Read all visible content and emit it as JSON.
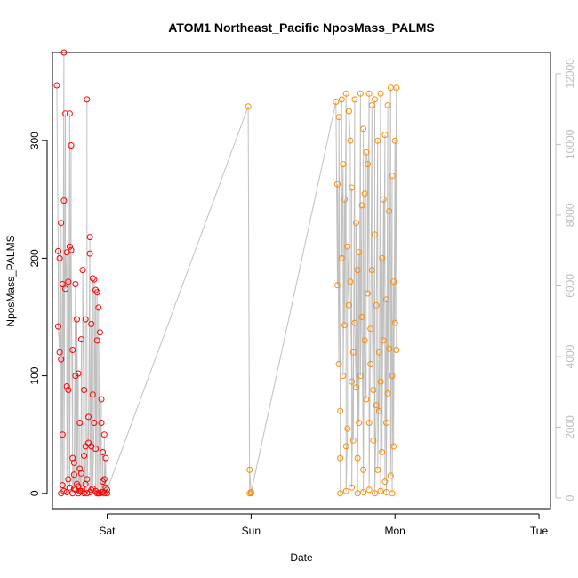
{
  "chart_data": {
    "type": "scatter",
    "title": "ATOM1 Northeast_Pacific NposMass_PALMS",
    "xlabel": "Date",
    "ylabel": "NposMass_PALMS",
    "x_ticks": [
      "Sat",
      "Sun",
      "Mon",
      "Tue"
    ],
    "x_range_days": [
      0.62,
      4.08
    ],
    "y_ticks": [
      0,
      100,
      200,
      300
    ],
    "ylim": [
      -13,
      375
    ],
    "y2_ticks": [
      0,
      2000,
      4000,
      6000,
      8000,
      10000,
      12000
    ],
    "y2lim": [
      -300,
      12600
    ],
    "grid": false,
    "colors": {
      "series1": "#ff0000",
      "series2": "#ff8c00",
      "line": "#c0c0c0",
      "right_axis": "#bdbdbd"
    },
    "series": [
      {
        "color": "#ff0000",
        "x": [
          0.65,
          0.66,
          0.66,
          0.67,
          0.67,
          0.68,
          0.68,
          0.69,
          0.69,
          0.7,
          0.7,
          0.71,
          0.71,
          0.72,
          0.72,
          0.73,
          0.73,
          0.74,
          0.74,
          0.75,
          0.75,
          0.76,
          0.76,
          0.77,
          0.77,
          0.78,
          0.78,
          0.79,
          0.79,
          0.8,
          0.8,
          0.81,
          0.81,
          0.82,
          0.82,
          0.83,
          0.83,
          0.84,
          0.84,
          0.85,
          0.85,
          0.86,
          0.86,
          0.87,
          0.87,
          0.88,
          0.88,
          0.89,
          0.89,
          0.9,
          0.9,
          0.91,
          0.91,
          0.92,
          0.92,
          0.93,
          0.93,
          0.94,
          0.94,
          0.95,
          0.95,
          0.96,
          0.96,
          0.97,
          0.97,
          0.98,
          0.98,
          0.99,
          0.99,
          1.0,
          1.0,
          0.68,
          0.7,
          0.72,
          0.74,
          0.76,
          0.78,
          0.8,
          0.82,
          0.84,
          0.86,
          0.88,
          0.9,
          0.92,
          0.94,
          0.96,
          0.98,
          0.69,
          0.73,
          0.77,
          0.81,
          0.85,
          0.89,
          0.93,
          0.97
        ],
        "y": [
          347,
          206,
          142,
          120,
          200,
          114,
          230,
          178,
          50,
          375,
          249,
          323,
          174,
          205,
          91,
          180,
          88,
          323,
          210,
          296,
          207,
          30,
          122,
          26,
          16,
          178,
          100,
          8,
          148,
          0,
          102,
          21,
          60,
          17,
          131,
          4,
          190,
          88,
          32,
          40,
          148,
          12,
          335,
          65,
          43,
          218,
          204,
          144,
          40,
          183,
          84,
          60,
          182,
          38,
          173,
          171,
          130,
          0,
          158,
          137,
          0,
          80,
          60,
          10,
          35,
          12,
          50,
          30,
          5,
          0,
          3,
          0,
          2,
          1,
          5,
          0,
          3,
          6,
          2,
          0,
          0,
          1,
          4,
          2,
          0,
          1,
          0,
          7,
          12,
          4,
          2,
          8,
          3,
          0,
          1
        ],
        "name": ""
      },
      {
        "color": "#ff8c00",
        "x": [
          1.98,
          1.99,
          1.99,
          2.0,
          2.0,
          2.59,
          2.6,
          2.6,
          2.61,
          2.61,
          2.62,
          2.62,
          2.63,
          2.63,
          2.64,
          2.64,
          2.65,
          2.65,
          2.66,
          2.66,
          2.67,
          2.67,
          2.68,
          2.68,
          2.69,
          2.69,
          2.7,
          2.7,
          2.71,
          2.71,
          2.72,
          2.72,
          2.73,
          2.73,
          2.74,
          2.74,
          2.75,
          2.75,
          2.76,
          2.76,
          2.77,
          2.77,
          2.78,
          2.78,
          2.79,
          2.79,
          2.8,
          2.8,
          2.81,
          2.81,
          2.82,
          2.82,
          2.83,
          2.83,
          2.84,
          2.84,
          2.85,
          2.85,
          2.86,
          2.86,
          2.87,
          2.87,
          2.88,
          2.88,
          2.89,
          2.89,
          2.9,
          2.9,
          2.91,
          2.91,
          2.92,
          2.92,
          2.93,
          2.93,
          2.94,
          2.94,
          2.95,
          2.95,
          2.96,
          2.96,
          2.97,
          2.97,
          2.98,
          2.98,
          2.99,
          2.99,
          3.0,
          3.0,
          3.01,
          3.01,
          2.62,
          2.66,
          2.7,
          2.74,
          2.78,
          2.82,
          2.86,
          2.9,
          2.94,
          2.98
        ],
        "y": [
          329,
          0,
          20,
          0,
          1,
          333,
          177,
          263,
          110,
          320,
          70,
          30,
          335,
          200,
          280,
          100,
          250,
          143,
          340,
          40,
          55,
          210,
          160,
          325,
          300,
          180,
          95,
          260,
          120,
          45,
          335,
          145,
          90,
          230,
          190,
          30,
          205,
          60,
          340,
          100,
          245,
          150,
          20,
          310,
          255,
          130,
          80,
          290,
          280,
          170,
          340,
          60,
          140,
          110,
          330,
          190,
          45,
          88,
          220,
          335,
          75,
          160,
          300,
          20,
          120,
          70,
          340,
          95,
          200,
          35,
          250,
          130,
          305,
          10,
          165,
          60,
          330,
          85,
          240,
          123,
          345,
          15,
          270,
          100,
          180,
          40,
          300,
          145,
          345,
          122,
          0,
          2,
          5,
          0,
          1,
          3,
          0,
          2,
          1,
          0
        ],
        "name": ""
      }
    ]
  }
}
